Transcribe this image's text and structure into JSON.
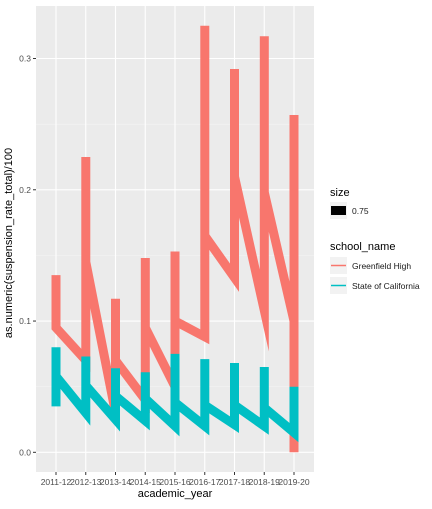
{
  "chart_data": {
    "type": "line",
    "title": "",
    "xlabel": "academic_year",
    "ylabel": "as.numeric(suspension_rate_total)/100",
    "categories": [
      "2011-12",
      "2012-13",
      "2013-14",
      "2014-15",
      "2015-16",
      "2016-17",
      "2017-18",
      "2018-19",
      "2019-20"
    ],
    "ylim": [
      -0.015,
      0.34
    ],
    "yticks": [
      0.0,
      0.1,
      0.2,
      0.3
    ],
    "ytick_labels": [
      "0.0",
      "0.1",
      "0.2",
      "0.3"
    ],
    "grid": true,
    "legend_position": "right",
    "size_legend": {
      "title": "size",
      "entry": "0.75"
    },
    "legend_title": "school_name",
    "series": [
      {
        "name": "Greenfield High",
        "color": "#F8766D",
        "segments": [
          [
            [
              0,
              0.135
            ],
            [
              0,
              0.095
            ],
            [
              1,
              0.07
            ],
            [
              1,
              0.225
            ],
            [
              1,
              0.145
            ],
            [
              2,
              0.03
            ],
            [
              2,
              0.117
            ],
            [
              2,
              0.07
            ],
            [
              3,
              0.04
            ],
            [
              3,
              0.148
            ],
            [
              3,
              0.095
            ],
            [
              4,
              0.05
            ],
            [
              4,
              0.153
            ],
            [
              4,
              0.1
            ],
            [
              5,
              0.088
            ],
            [
              5,
              0.325
            ],
            [
              5,
              0.165
            ],
            [
              6,
              0.133
            ],
            [
              6,
              0.292
            ],
            [
              6,
              0.21
            ],
            [
              7,
              0.108
            ],
            [
              7,
              0.317
            ],
            [
              7,
              0.198
            ],
            [
              8,
              0.1
            ],
            [
              8,
              0.257
            ],
            [
              8,
              0.0
            ]
          ]
        ]
      },
      {
        "name": "State of California",
        "color": "#00BFC4",
        "segments": [
          [
            [
              0,
              0.035
            ],
            [
              0,
              0.08
            ],
            [
              0,
              0.058
            ],
            [
              1,
              0.03
            ],
            [
              1,
              0.073
            ],
            [
              1,
              0.051
            ],
            [
              2,
              0.025
            ],
            [
              2,
              0.064
            ],
            [
              2,
              0.043
            ],
            [
              3,
              0.024
            ],
            [
              3,
              0.061
            ],
            [
              3,
              0.041
            ],
            [
              4,
              0.02
            ],
            [
              4,
              0.075
            ],
            [
              4,
              0.038
            ],
            [
              5,
              0.02
            ],
            [
              5,
              0.071
            ],
            [
              5,
              0.036
            ],
            [
              6,
              0.021
            ],
            [
              6,
              0.068
            ],
            [
              6,
              0.036
            ],
            [
              7,
              0.02
            ],
            [
              7,
              0.065
            ],
            [
              7,
              0.034
            ],
            [
              8,
              0.015
            ],
            [
              8,
              0.05
            ]
          ]
        ]
      }
    ]
  }
}
